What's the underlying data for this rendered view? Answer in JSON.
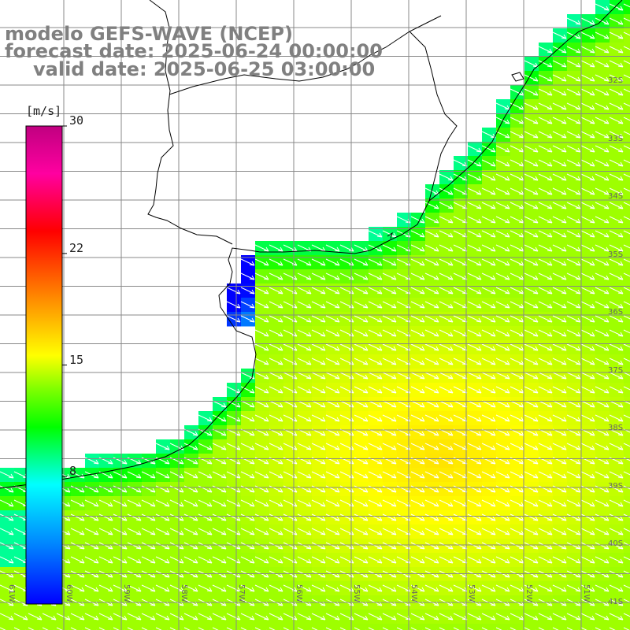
{
  "title": {
    "line1": "modelo GEFS-WAVE (NCEP)",
    "line2": "forecast date: 2025-06-24 00:00:00",
    "line3": "valid date: 2025-06-25 03:00:00"
  },
  "colorbar": {
    "unit": "[m/s]",
    "min": 0,
    "max": 30,
    "ticks": [
      30,
      22,
      15,
      8
    ],
    "colors": [
      "#0000ff",
      "#0080ff",
      "#00ffff",
      "#00ff00",
      "#80ff00",
      "#ffff00",
      "#ff8000",
      "#ff0000",
      "#ff00a0",
      "#c00080"
    ]
  },
  "grid": {
    "lat_labels": [
      "32S",
      "33S",
      "34S",
      "35S",
      "36S",
      "37S",
      "38S",
      "39S",
      "40S",
      "41S"
    ],
    "lon_labels": [
      "61W",
      "60W",
      "59W",
      "58W",
      "57W",
      "56W",
      "55W",
      "54W",
      "53W",
      "52W",
      "51W"
    ]
  },
  "field": {
    "variable": "wind speed",
    "typical_speed_ms": 14,
    "peak_speed_ms": 16.5,
    "peak_region": "south-east offshore",
    "wind_direction": "from north-west"
  }
}
